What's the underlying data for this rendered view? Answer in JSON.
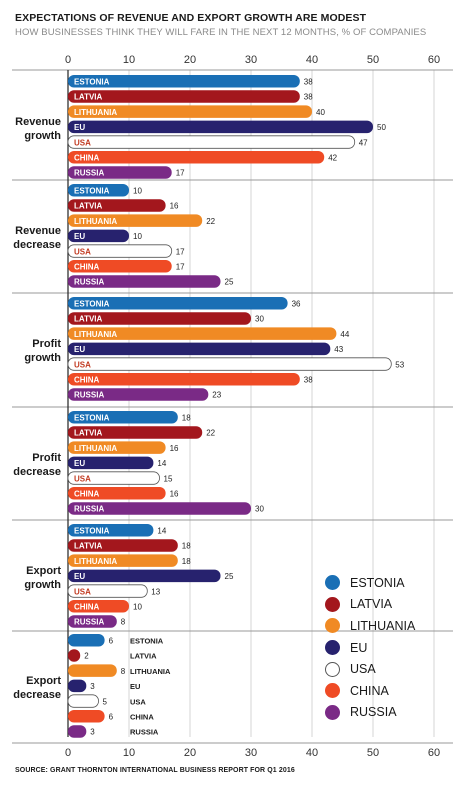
{
  "title": "EXPECTATIONS OF REVENUE AND EXPORT GROWTH ARE MODEST",
  "subtitle": "HOW BUSINESSES THINK THEY WILL FARE IN THE NEXT 12 MONTHS, % OF COMPANIES",
  "source": "SOURCE: GRANT THORNTON INTERNATIONAL BUSINESS REPORT FOR Q1 2016",
  "colors": {
    "ESTONIA": "#1a6fb5",
    "LATVIA": "#a3171d",
    "LITHUANIA": "#f08a24",
    "EU": "#27226e",
    "USA": "#ffffff",
    "CHINA": "#ef4b25",
    "RUSSIA": "#7a2a86"
  },
  "legend": {
    "items": [
      {
        "label": "ESTONIA",
        "color": "#1a6fb5"
      },
      {
        "label": "LATVIA",
        "color": "#a3171d"
      },
      {
        "label": "LITHUANIA",
        "color": "#f08a24"
      },
      {
        "label": "EU",
        "color": "#27226e"
      },
      {
        "label": "USA",
        "color": "#ffffff"
      },
      {
        "label": "CHINA",
        "color": "#ef4b25"
      },
      {
        "label": "RUSSIA",
        "color": "#7a2a86"
      }
    ]
  },
  "chart_data": {
    "type": "bar",
    "orientation": "horizontal",
    "xlim": [
      0,
      60
    ],
    "x_ticks": [
      0,
      10,
      20,
      30,
      40,
      50,
      60
    ],
    "grid": true,
    "legend_position": "bottom-right",
    "series": [
      "ESTONIA",
      "LATVIA",
      "LITHUANIA",
      "EU",
      "USA",
      "CHINA",
      "RUSSIA"
    ],
    "groups": [
      {
        "label": [
          "Revenue",
          "growth"
        ],
        "values": [
          38,
          38,
          40,
          50,
          47,
          42,
          17
        ]
      },
      {
        "label": [
          "Revenue",
          "decrease"
        ],
        "values": [
          10,
          16,
          22,
          10,
          17,
          17,
          25
        ]
      },
      {
        "label": [
          "Profit",
          "growth"
        ],
        "values": [
          36,
          30,
          44,
          43,
          53,
          38,
          23
        ]
      },
      {
        "label": [
          "Profit",
          "decrease"
        ],
        "values": [
          18,
          22,
          16,
          14,
          15,
          16,
          30
        ]
      },
      {
        "label": [
          "Export",
          "growth"
        ],
        "values": [
          14,
          18,
          18,
          25,
          13,
          10,
          8
        ]
      },
      {
        "label": [
          "Export",
          "decrease"
        ],
        "values": [
          6,
          2,
          8,
          3,
          5,
          6,
          3
        ]
      }
    ]
  }
}
